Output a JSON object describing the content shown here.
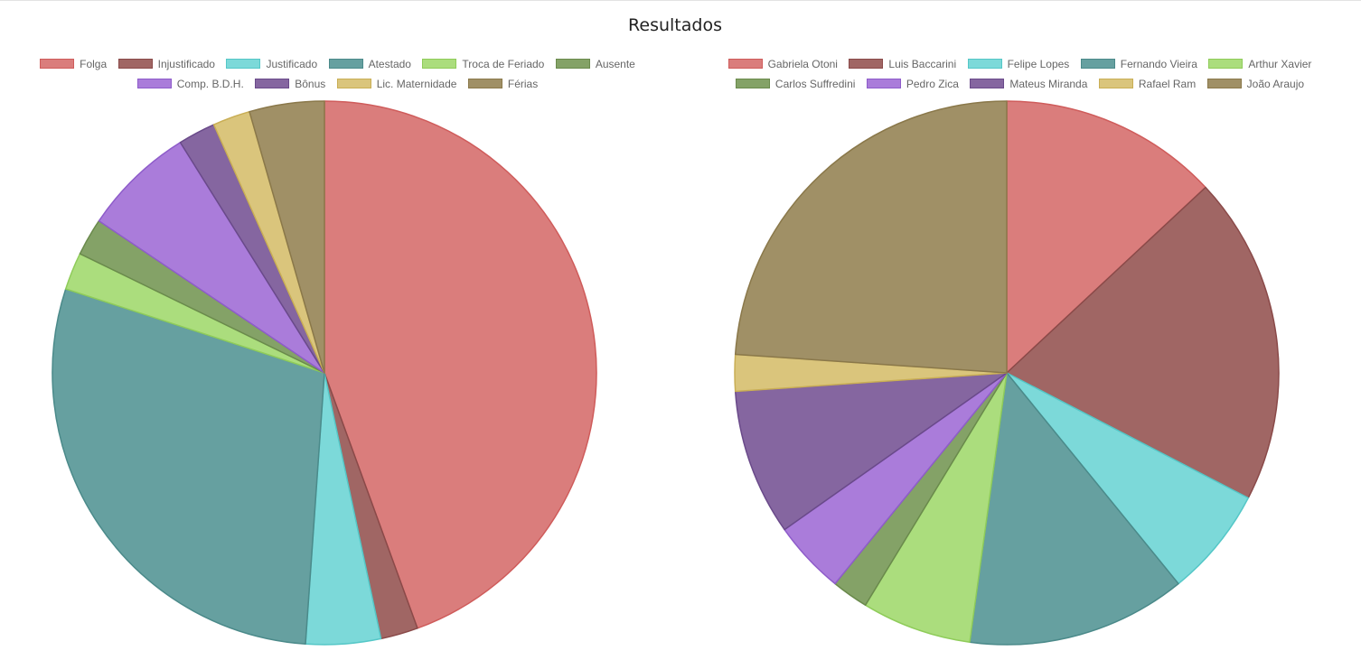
{
  "page": {
    "title": "Resultados"
  },
  "palette": [
    {
      "fill": "#DA7D7C",
      "stroke": "#CF5C5B"
    },
    {
      "fill": "#A06664",
      "stroke": "#8A4A49"
    },
    {
      "fill": "#7CD9D9",
      "stroke": "#55C7C7"
    },
    {
      "fill": "#66A0A0",
      "stroke": "#4B8A8A"
    },
    {
      "fill": "#ABDD7D",
      "stroke": "#8FCC5A"
    },
    {
      "fill": "#84A267",
      "stroke": "#6A8A4C"
    },
    {
      "fill": "#AA7CDA",
      "stroke": "#8E5CCA"
    },
    {
      "fill": "#8566A0",
      "stroke": "#6A4A8A"
    },
    {
      "fill": "#DAC57C",
      "stroke": "#C9AE55"
    },
    {
      "fill": "#A09066",
      "stroke": "#8A784A"
    }
  ],
  "chart_data": [
    {
      "type": "pie",
      "title": "",
      "legend_position": "top",
      "start_angle_deg": -90,
      "categories": [
        "Folga",
        "Injustificado",
        "Justificado",
        "Atestado",
        "Troca de Feriado",
        "Ausente",
        "Comp. B.D.H.",
        "Bônus",
        "Lic. Maternidade",
        "Férias"
      ],
      "values": [
        20,
        1,
        2,
        13,
        1,
        1,
        3,
        1,
        1,
        2
      ]
    },
    {
      "type": "pie",
      "title": "",
      "legend_position": "top",
      "start_angle_deg": -90,
      "categories": [
        "Gabriela Otoni",
        "Luis Baccarini",
        "Felipe Lopes",
        "Fernando Vieira",
        "Arthur Xavier",
        "Carlos Suffredini",
        "Pedro Zica",
        "Mateus Miranda",
        "Rafael Ram",
        "João Araujo"
      ],
      "values": [
        6,
        9,
        3,
        6,
        3,
        1,
        2,
        4,
        1,
        11
      ]
    }
  ]
}
